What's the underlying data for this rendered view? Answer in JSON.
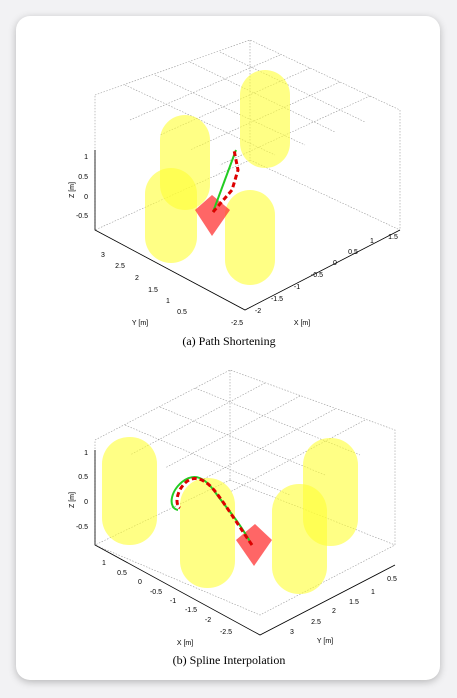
{
  "figures": [
    {
      "caption": "(a)  Path Shortening",
      "z_label": "Z [m]",
      "z_ticks": [
        1,
        0.5,
        0,
        -0.5
      ],
      "left_label": "Y [m]",
      "left_ticks": [
        3,
        2.5,
        2,
        1.5,
        1,
        0.5
      ],
      "right_label": "X [m]",
      "right_ticks": [
        -2.5,
        -2,
        -1.5,
        -1,
        -0.5,
        0,
        0.5,
        1,
        1.5
      ]
    },
    {
      "caption": "(b)  Spline Interpolation",
      "z_label": "Z [m]",
      "z_ticks": [
        1,
        0.5,
        0,
        -0.5
      ],
      "left_label": "X [m]",
      "left_ticks": [
        1,
        0.5,
        0,
        -0.5,
        -1,
        -1.5,
        -2,
        -2.5
      ],
      "right_label": "Y [m]",
      "right_ticks": [
        3,
        2.5,
        2,
        1.5,
        1,
        0.5
      ]
    }
  ]
}
